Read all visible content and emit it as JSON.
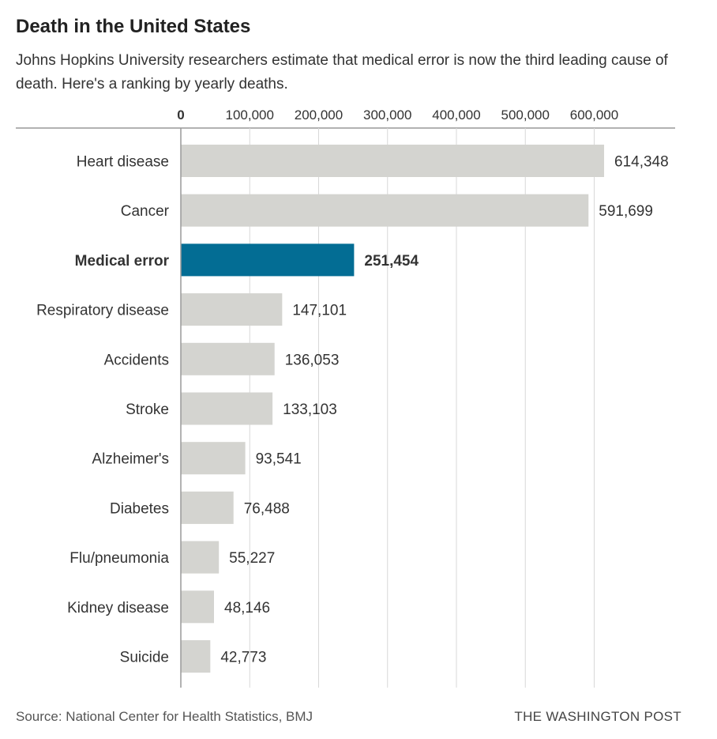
{
  "chart_data": {
    "type": "bar",
    "orientation": "horizontal",
    "title": "Death in the United States",
    "subtitle": "Johns Hopkins University researchers estimate that medical error is now the third leading cause of death. Here's a ranking by yearly deaths.",
    "categories": [
      "Heart disease",
      "Cancer",
      "Medical error",
      "Respiratory disease",
      "Accidents",
      "Stroke",
      "Alzheimer's",
      "Diabetes",
      "Flu/pneumonia",
      "Kidney disease",
      "Suicide"
    ],
    "values": [
      614348,
      591699,
      251454,
      147101,
      136053,
      133103,
      93541,
      76488,
      55227,
      48146,
      42773
    ],
    "value_labels": [
      "614,348",
      "591,699",
      "251,454",
      "147,101",
      "136,053",
      "133,103",
      "93,541",
      "76,488",
      "55,227",
      "48,146",
      "42,773"
    ],
    "highlight": "Medical error",
    "xticks": [
      0,
      100000,
      200000,
      300000,
      400000,
      500000,
      600000
    ],
    "xtick_labels": [
      "0",
      "100,000",
      "200,000",
      "300,000",
      "400,000",
      "500,000",
      "600,000"
    ],
    "xlim": [
      0,
      700000
    ],
    "xaxis_position": "top",
    "grid": true,
    "colors": {
      "bar": "#d4d4d0",
      "highlight": "#036d94",
      "grid": "#d8d8d8",
      "axis": "#999999"
    }
  },
  "footer": {
    "source": "Source: National Center for Health Statistics, BMJ",
    "credit": "THE WASHINGTON POST"
  }
}
